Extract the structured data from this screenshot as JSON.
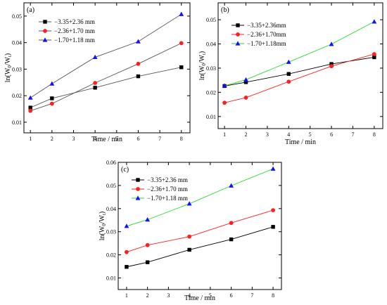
{
  "chart_data": [
    {
      "type": "line",
      "panel_label": "(a)",
      "xlabel": "Time / min",
      "ylabel_main": "ln(W",
      "ylabel_sub": "0",
      "ylabel_mid": "/W",
      "ylabel_sub2": "t",
      "ylabel_end": ")",
      "xlim": [
        0.7,
        8.4
      ],
      "ylim": [
        0.006,
        0.055
      ],
      "xticks": [
        "1",
        "2",
        "3",
        "4",
        "5",
        "6",
        "7",
        "8"
      ],
      "yticks": [
        "0.01",
        "0.02",
        "0.03",
        "0.04",
        "0.05"
      ],
      "legend_position": "top-left",
      "series": [
        {
          "name": "−3.35+2.36 mm",
          "x": [
            1,
            2,
            4,
            6,
            8
          ],
          "values": [
            0.0155,
            0.019,
            0.023,
            0.0273,
            0.0307
          ],
          "color": "#000000",
          "line": "#555555",
          "marker": "square"
        },
        {
          "name": "−2.36+1.70 mm",
          "x": [
            1,
            2,
            4,
            6,
            8
          ],
          "values": [
            0.0143,
            0.017,
            0.0248,
            0.032,
            0.0398
          ],
          "color": "#ff1f1f",
          "line": "#555555",
          "marker": "circle"
        },
        {
          "name": "−1.70+1.18 mm",
          "x": [
            1,
            2,
            4,
            6,
            8
          ],
          "values": [
            0.0192,
            0.0245,
            0.0345,
            0.0404,
            0.0507
          ],
          "color": "#1010ff",
          "line": "#555555",
          "marker": "triangle"
        }
      ]
    },
    {
      "type": "line",
      "panel_label": "(b)",
      "xlabel": "Time / min",
      "ylabel_main": "ln(W",
      "ylabel_sub": "0",
      "ylabel_mid": "/W",
      "ylabel_sub2": "t",
      "ylabel_end": ")",
      "xlim": [
        0.7,
        8.4
      ],
      "ylim": [
        0.005,
        0.057
      ],
      "xticks": [
        "1",
        "2",
        "3",
        "4",
        "5",
        "6",
        "7",
        "8"
      ],
      "yticks": [
        "0.01",
        "0.02",
        "0.03",
        "0.04",
        "0.05"
      ],
      "legend_position": "top-left",
      "series": [
        {
          "name": "−3.35+2.36mm",
          "x": [
            1,
            2,
            4,
            6,
            8
          ],
          "values": [
            0.0226,
            0.0242,
            0.0276,
            0.0317,
            0.0345
          ],
          "color": "#000000",
          "line": "#000000",
          "marker": "square"
        },
        {
          "name": "−2.36+1.70mm",
          "x": [
            1,
            2,
            4,
            6,
            8
          ],
          "values": [
            0.0157,
            0.0178,
            0.0244,
            0.0308,
            0.0358
          ],
          "color": "#ff1f1f",
          "line": "#ff1f1f",
          "marker": "circle"
        },
        {
          "name": "−1.70+1.18mm",
          "x": [
            1,
            2,
            4,
            6,
            8
          ],
          "values": [
            0.0227,
            0.0252,
            0.0325,
            0.0399,
            0.0492
          ],
          "color": "#1010ff",
          "line": "#22dd22",
          "marker": "triangle"
        }
      ]
    },
    {
      "type": "line",
      "panel_label": "(c)",
      "xlabel": "Time / min",
      "ylabel_main": "ln(W",
      "ylabel_sub": "0",
      "ylabel_mid": "/W",
      "ylabel_sub2": "t",
      "ylabel_end": ")",
      "xlim": [
        0.6,
        8.4
      ],
      "ylim": [
        0.005,
        0.06
      ],
      "xticks": [
        "1",
        "2",
        "3",
        "4",
        "5",
        "6",
        "7",
        "8"
      ],
      "yticks": [
        "0.01",
        "0.02",
        "0.03",
        "0.04",
        "0.05",
        "0.06"
      ],
      "legend_position": "top-left",
      "series": [
        {
          "name": "−3.35+2.36 mm",
          "x": [
            1,
            2,
            4,
            6,
            8
          ],
          "values": [
            0.0148,
            0.0168,
            0.0222,
            0.0267,
            0.0321
          ],
          "color": "#000000",
          "line": "#000000",
          "marker": "square"
        },
        {
          "name": "−2.36+1.70 mm",
          "x": [
            1,
            2,
            4,
            6,
            8
          ],
          "values": [
            0.0212,
            0.0242,
            0.0279,
            0.0338,
            0.0393
          ],
          "color": "#ff1f1f",
          "line": "#ff1f1f",
          "marker": "circle"
        },
        {
          "name": "−1.70+1.18 mm",
          "x": [
            1,
            2,
            4,
            6,
            8
          ],
          "values": [
            0.0324,
            0.0352,
            0.0421,
            0.0499,
            0.0572
          ],
          "color": "#1010ff",
          "line": "#22dd22",
          "marker": "triangle"
        }
      ]
    }
  ]
}
